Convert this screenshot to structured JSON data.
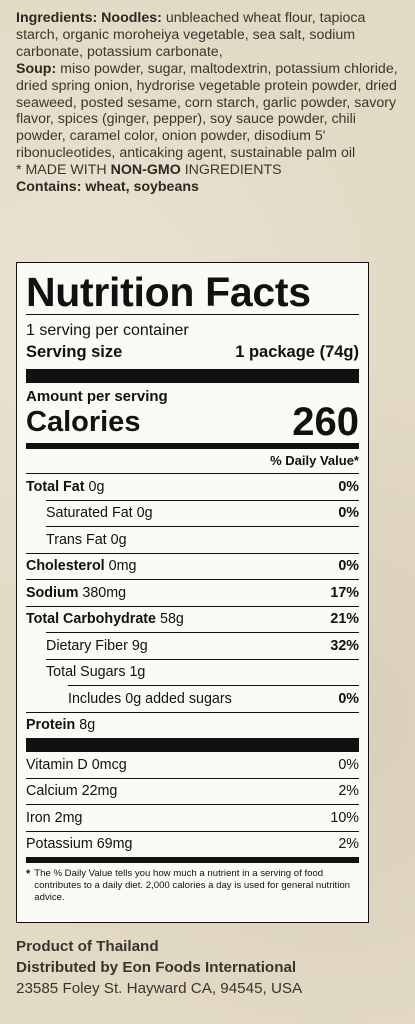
{
  "ingredients": {
    "label": "Ingredients:",
    "noodles_label": "Noodles:",
    "noodles_text": "unbleached wheat flour, tapioca starch, organic moroheiya vegetable, sea salt, sodium carbonate, potassium carbonate,",
    "soup_label": "Soup:",
    "soup_text": "miso powder, sugar, maltodextrin, potassium chloride, dried spring onion, hydrorise vegetable protein powder, dried seaweed, posted sesame, corn starch, garlic powder, savory flavor, spices (ginger, pepper), soy sauce powder, chili powder, caramel color, onion powder, disodium 5' ribonucleotides, anticaking agent, sustainable palm oil",
    "nongmo_prefix": "* MADE WITH ",
    "nongmo_bold": "NON-GMO",
    "nongmo_suffix": " INGREDIENTS",
    "contains": "Contains: wheat, soybeans"
  },
  "nutrition": {
    "title": "Nutrition Facts",
    "servings": "1 serving per container",
    "serving_size_label": "Serving size",
    "serving_size_value": "1 package (74g)",
    "amount_per_serving": "Amount per serving",
    "calories_label": "Calories",
    "calories_value": "260",
    "dv_header": "% Daily Value*",
    "rows": [
      {
        "name": "Total Fat",
        "amount": "0g",
        "dv": "0%"
      },
      {
        "name": "Saturated Fat",
        "amount": "0g",
        "dv": "0%"
      },
      {
        "name": "Trans Fat",
        "amount": "0g",
        "dv": ""
      },
      {
        "name": "Cholesterol",
        "amount": "0mg",
        "dv": "0%"
      },
      {
        "name": "Sodium",
        "amount": "380mg",
        "dv": "17%"
      },
      {
        "name": "Total Carbohydrate",
        "amount": "58g",
        "dv": "21%"
      },
      {
        "name": "Dietary Fiber",
        "amount": "9g",
        "dv": "32%"
      },
      {
        "name": "Total Sugars",
        "amount": "1g",
        "dv": ""
      },
      {
        "name": "Includes",
        "amount": "0g added sugars",
        "dv": "0%"
      },
      {
        "name": "Protein",
        "amount": "8g",
        "dv": ""
      }
    ],
    "vitamins": [
      {
        "name": "Vitamin D",
        "amount": "0mcg",
        "dv": "0%"
      },
      {
        "name": "Calcium",
        "amount": "22mg",
        "dv": "2%"
      },
      {
        "name": "Iron",
        "amount": "2mg",
        "dv": "10%"
      },
      {
        "name": "Potassium",
        "amount": "69mg",
        "dv": "2%"
      }
    ],
    "footnote_star": "*",
    "footnote": "The % Daily Value tells you how much a nutrient in a serving of food contributes to a daily diet. 2,000 calories a day is used for general nutrition advice."
  },
  "footer": {
    "origin": "Product of Thailand",
    "distributor": "Distributed by Eon Foods International",
    "address": "23585 Foley St. Hayward CA, 94545, USA"
  }
}
